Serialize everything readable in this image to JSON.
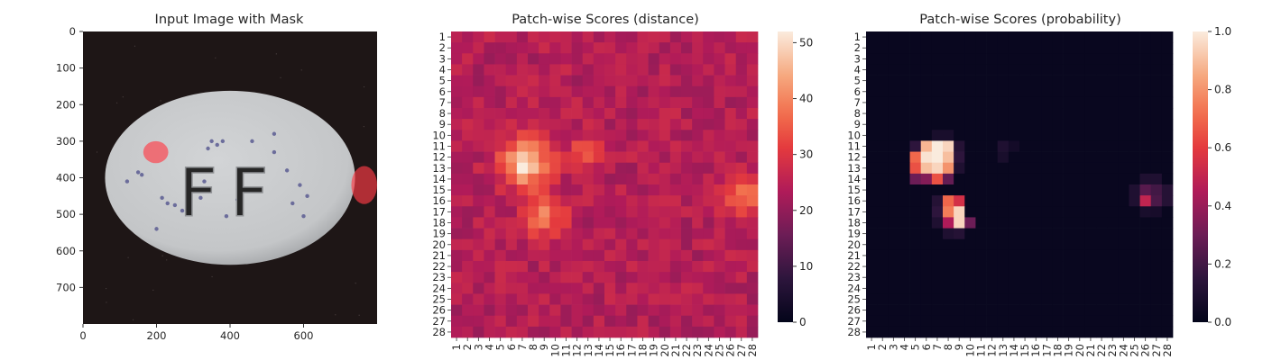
{
  "chart_data": [
    {
      "type": "image",
      "title": "Input Image with Mask",
      "xticks": [
        0,
        200,
        400,
        600
      ],
      "yticks": [
        0,
        100,
        200,
        300,
        400,
        500,
        600,
        700
      ],
      "xlim": [
        0,
        800
      ],
      "ylim": [
        800,
        0
      ],
      "colors": {
        "background": "#1e1616",
        "pill": "#c4c6c8",
        "speckle": "#5a5c92",
        "mask": "#ff3c46"
      },
      "embossed_text": "FF",
      "mask_regions": [
        {
          "cx": 198,
          "cy": 330,
          "rx": 34,
          "ry": 30
        },
        {
          "cx": 765,
          "cy": 420,
          "rx": 35,
          "ry": 52
        }
      ],
      "pill": {
        "cx": 400,
        "cy": 400,
        "rx": 340,
        "ry": 238
      }
    },
    {
      "type": "heatmap",
      "title": "Patch-wise Scores (distance)",
      "rows": 28,
      "cols": 28,
      "row_labels": [
        "1",
        "2",
        "3",
        "4",
        "5",
        "6",
        "7",
        "8",
        "9",
        "10",
        "11",
        "12",
        "13",
        "14",
        "15",
        "16",
        "17",
        "18",
        "19",
        "20",
        "21",
        "22",
        "23",
        "24",
        "25",
        "26",
        "27",
        "28"
      ],
      "col_labels": [
        "1",
        "2",
        "3",
        "4",
        "5",
        "6",
        "7",
        "8",
        "9",
        "10",
        "11",
        "12",
        "13",
        "14",
        "15",
        "16",
        "17",
        "18",
        "19",
        "20",
        "21",
        "22",
        "23",
        "24",
        "25",
        "26",
        "27",
        "28"
      ],
      "colorbar": {
        "min": 0,
        "max": 52,
        "ticks": [
          0,
          10,
          20,
          30,
          40,
          50
        ]
      },
      "base": 24,
      "hotspots": [
        {
          "row": 12.5,
          "col": 7.3,
          "amp": 27,
          "sigma": 1.5
        },
        {
          "row": 17.5,
          "col": 9.0,
          "amp": 15,
          "sigma": 1.3
        },
        {
          "row": 11.5,
          "col": 12.8,
          "amp": 8,
          "sigma": 1.2
        },
        {
          "row": 15.5,
          "col": 27.0,
          "amp": 14,
          "sigma": 1.4
        }
      ]
    },
    {
      "type": "heatmap",
      "title": "Patch-wise Scores (probability)",
      "rows": 28,
      "cols": 28,
      "row_labels": [
        "1",
        "2",
        "3",
        "4",
        "5",
        "6",
        "7",
        "8",
        "9",
        "10",
        "11",
        "12",
        "13",
        "14",
        "15",
        "16",
        "17",
        "18",
        "19",
        "20",
        "21",
        "22",
        "23",
        "24",
        "25",
        "26",
        "27",
        "28"
      ],
      "col_labels": [
        "1",
        "2",
        "3",
        "4",
        "5",
        "6",
        "7",
        "8",
        "9",
        "10",
        "11",
        "12",
        "13",
        "14",
        "15",
        "16",
        "17",
        "18",
        "19",
        "20",
        "21",
        "22",
        "23",
        "24",
        "25",
        "26",
        "27",
        "28"
      ],
      "colorbar": {
        "min": 0.0,
        "max": 1.0,
        "ticks": [
          0.0,
          0.2,
          0.4,
          0.6,
          0.8,
          1.0
        ],
        "tick_labels": [
          "0.0",
          "0.2",
          "0.4",
          "0.6",
          "0.8",
          "1.0"
        ]
      },
      "base": 0.02,
      "cells": [
        {
          "row": 11,
          "col": 6,
          "value": 0.88
        },
        {
          "row": 11,
          "col": 7,
          "value": 1.0
        },
        {
          "row": 11,
          "col": 8,
          "value": 0.95
        },
        {
          "row": 11,
          "col": 5,
          "value": 0.15
        },
        {
          "row": 11,
          "col": 9,
          "value": 0.12
        },
        {
          "row": 12,
          "col": 5,
          "value": 0.7
        },
        {
          "row": 12,
          "col": 6,
          "value": 0.98
        },
        {
          "row": 12,
          "col": 7,
          "value": 1.0
        },
        {
          "row": 12,
          "col": 8,
          "value": 0.9
        },
        {
          "row": 12,
          "col": 9,
          "value": 0.15
        },
        {
          "row": 13,
          "col": 5,
          "value": 0.65
        },
        {
          "row": 13,
          "col": 6,
          "value": 0.9
        },
        {
          "row": 13,
          "col": 7,
          "value": 0.95
        },
        {
          "row": 13,
          "col": 8,
          "value": 0.8
        },
        {
          "row": 13,
          "col": 9,
          "value": 0.1
        },
        {
          "row": 14,
          "col": 5,
          "value": 0.3
        },
        {
          "row": 14,
          "col": 6,
          "value": 0.35
        },
        {
          "row": 14,
          "col": 7,
          "value": 0.65
        },
        {
          "row": 14,
          "col": 8,
          "value": 0.28
        },
        {
          "row": 10,
          "col": 7,
          "value": 0.08
        },
        {
          "row": 10,
          "col": 8,
          "value": 0.08
        },
        {
          "row": 16,
          "col": 8,
          "value": 0.7
        },
        {
          "row": 16,
          "col": 9,
          "value": 0.55
        },
        {
          "row": 16,
          "col": 7,
          "value": 0.12
        },
        {
          "row": 17,
          "col": 8,
          "value": 0.75
        },
        {
          "row": 17,
          "col": 9,
          "value": 0.95
        },
        {
          "row": 17,
          "col": 7,
          "value": 0.15
        },
        {
          "row": 18,
          "col": 8,
          "value": 0.45
        },
        {
          "row": 18,
          "col": 9,
          "value": 0.95
        },
        {
          "row": 18,
          "col": 10,
          "value": 0.3
        },
        {
          "row": 18,
          "col": 7,
          "value": 0.1
        },
        {
          "row": 19,
          "col": 8,
          "value": 0.1
        },
        {
          "row": 19,
          "col": 9,
          "value": 0.12
        },
        {
          "row": 11,
          "col": 13,
          "value": 0.1
        },
        {
          "row": 12,
          "col": 13,
          "value": 0.08
        },
        {
          "row": 11,
          "col": 14,
          "value": 0.06
        },
        {
          "row": 15,
          "col": 26,
          "value": 0.25
        },
        {
          "row": 16,
          "col": 26,
          "value": 0.5
        },
        {
          "row": 15,
          "col": 27,
          "value": 0.2
        },
        {
          "row": 16,
          "col": 27,
          "value": 0.22
        },
        {
          "row": 14,
          "col": 26,
          "value": 0.1
        },
        {
          "row": 14,
          "col": 27,
          "value": 0.1
        },
        {
          "row": 15,
          "col": 25,
          "value": 0.1
        },
        {
          "row": 16,
          "col": 25,
          "value": 0.1
        },
        {
          "row": 17,
          "col": 26,
          "value": 0.08
        },
        {
          "row": 17,
          "col": 27,
          "value": 0.07
        },
        {
          "row": 15,
          "col": 28,
          "value": 0.12
        },
        {
          "row": 16,
          "col": 28,
          "value": 0.12
        }
      ]
    }
  ]
}
